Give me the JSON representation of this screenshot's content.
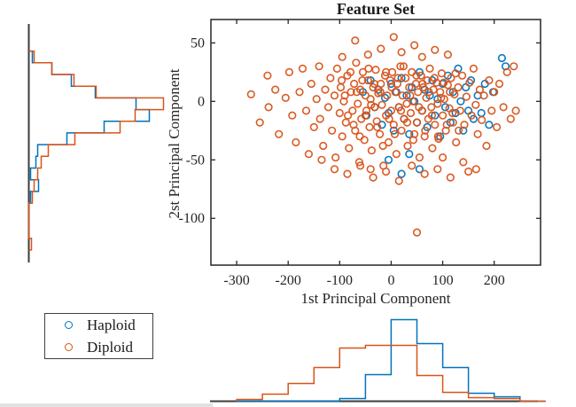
{
  "figure": {
    "title": "Feature Set",
    "background": "#ffffff"
  },
  "colors": {
    "haploid": "#0072BD",
    "diploid": "#D95319",
    "axis": "#262626",
    "hist_axis": "#3c3c3c",
    "text": "#262626"
  },
  "legend": {
    "items": [
      {
        "label": "Haploid",
        "color": "#0072BD"
      },
      {
        "label": "Diploid",
        "color": "#D95319"
      }
    ]
  },
  "chart_data": {
    "type": "scatter",
    "title": "Feature Set",
    "xlabel": "1st Principal Component",
    "ylabel": "2st Principal Component",
    "xlim": [
      -350,
      290
    ],
    "ylim": [
      -140,
      70
    ],
    "x_ticks": [
      -300,
      -200,
      -100,
      0,
      100,
      200
    ],
    "y_ticks": [
      50,
      0,
      -50,
      -100
    ],
    "grid": false,
    "legend_position": "bottom-left-outside",
    "series": [
      {
        "name": "Haploid",
        "color": "#0072BD",
        "marker": "open-circle",
        "points": [
          [
            -55,
            8
          ],
          [
            -48,
            -12
          ],
          [
            -40,
            18
          ],
          [
            -32,
            -5
          ],
          [
            -25,
            10
          ],
          [
            -18,
            -20
          ],
          [
            -12,
            3
          ],
          [
            -5,
            -10
          ],
          [
            0,
            15
          ],
          [
            5,
            -25
          ],
          [
            10,
            8
          ],
          [
            15,
            -5
          ],
          [
            20,
            20
          ],
          [
            25,
            -15
          ],
          [
            30,
            5
          ],
          [
            35,
            -28
          ],
          [
            40,
            12
          ],
          [
            45,
            0
          ],
          [
            50,
            -18
          ],
          [
            55,
            25
          ],
          [
            60,
            -8
          ],
          [
            65,
            10
          ],
          [
            70,
            -22
          ],
          [
            75,
            5
          ],
          [
            80,
            18
          ],
          [
            85,
            -12
          ],
          [
            90,
            2
          ],
          [
            95,
            -30
          ],
          [
            100,
            15
          ],
          [
            105,
            -5
          ],
          [
            110,
            22
          ],
          [
            115,
            -18
          ],
          [
            120,
            8
          ],
          [
            125,
            -10
          ],
          [
            130,
            28
          ],
          [
            135,
            0
          ],
          [
            140,
            -25
          ],
          [
            145,
            12
          ],
          [
            150,
            -8
          ],
          [
            155,
            18
          ],
          [
            160,
            -15
          ],
          [
            168,
            5
          ],
          [
            175,
            -10
          ],
          [
            182,
            15
          ],
          [
            190,
            -20
          ],
          [
            198,
            8
          ],
          [
            215,
            37
          ],
          [
            222,
            30
          ],
          [
            20,
            -62
          ],
          [
            55,
            -58
          ],
          [
            -5,
            -50
          ],
          [
            35,
            -45
          ]
        ]
      },
      {
        "name": "Diploid",
        "color": "#D95319",
        "marker": "open-circle",
        "points": [
          [
            -272,
            6
          ],
          [
            -255,
            -18
          ],
          [
            -240,
            22
          ],
          [
            -238,
            -5
          ],
          [
            -225,
            10
          ],
          [
            -218,
            -28
          ],
          [
            -205,
            3
          ],
          [
            -198,
            25
          ],
          [
            -192,
            -12
          ],
          [
            -185,
            -35
          ],
          [
            -178,
            8
          ],
          [
            -172,
            28
          ],
          [
            -165,
            -8
          ],
          [
            -160,
            -45
          ],
          [
            -155,
            15
          ],
          [
            -150,
            -22
          ],
          [
            -145,
            2
          ],
          [
            -140,
            30
          ],
          [
            -138,
            -15
          ],
          [
            -132,
            -38
          ],
          [
            -128,
            10
          ],
          [
            -122,
            -5
          ],
          [
            -118,
            20
          ],
          [
            -115,
            -25
          ],
          [
            -110,
            5
          ],
          [
            -108,
            -48
          ],
          [
            -105,
            28
          ],
          [
            -100,
            -10
          ],
          [
            -98,
            12
          ],
          [
            -95,
            -30
          ],
          [
            -92,
            0
          ],
          [
            -88,
            -18
          ],
          [
            -85,
            22
          ],
          [
            -82,
            -40
          ],
          [
            -78,
            8
          ],
          [
            -75,
            -8
          ],
          [
            -72,
            15
          ],
          [
            -70,
            -25
          ],
          [
            -68,
            33
          ],
          [
            -65,
            -2
          ],
          [
            -62,
            -52
          ],
          [
            -60,
            10
          ],
          [
            -58,
            -15
          ],
          [
            -55,
            25
          ],
          [
            -52,
            -33
          ],
          [
            -50,
            5
          ],
          [
            -48,
            -8
          ],
          [
            -45,
            18
          ],
          [
            -42,
            -22
          ],
          [
            -40,
            2
          ],
          [
            -38,
            -42
          ],
          [
            -35,
            12
          ],
          [
            -32,
            -5
          ],
          [
            -30,
            27
          ],
          [
            -28,
            -17
          ],
          [
            -25,
            7
          ],
          [
            -22,
            -28
          ],
          [
            -20,
            15
          ],
          [
            -18,
            -3
          ],
          [
            -15,
            -55
          ],
          [
            -12,
            22
          ],
          [
            -10,
            -12
          ],
          [
            -8,
            5
          ],
          [
            -5,
            -35
          ],
          [
            -2,
            18
          ],
          [
            -96,
            18
          ],
          [
            -90,
            5
          ],
          [
            -84,
            -12
          ],
          [
            -79,
            25
          ],
          [
            -73,
            -20
          ],
          [
            -67,
            8
          ],
          [
            -61,
            -30
          ],
          [
            -56,
            18
          ],
          [
            -50,
            -12
          ],
          [
            -44,
            28
          ],
          [
            -39,
            -3
          ],
          [
            -33,
            15
          ],
          [
            -27,
            -22
          ],
          [
            -21,
            8
          ],
          [
            -16,
            -38
          ],
          [
            -10,
            25
          ],
          [
            -4,
            -15
          ],
          [
            1,
            12
          ],
          [
            7,
            -28
          ],
          [
            13,
            20
          ],
          [
            19,
            -8
          ],
          [
            24,
            30
          ],
          [
            31,
            -18
          ],
          [
            37,
            5
          ],
          [
            43,
            -33
          ],
          [
            49,
            22
          ],
          [
            54,
            -5
          ],
          [
            61,
            15
          ],
          [
            66,
            -25
          ],
          [
            73,
            8
          ],
          [
            79,
            -12
          ],
          [
            84,
            20
          ],
          [
            91,
            -30
          ],
          [
            97,
            3
          ],
          [
            102,
            16
          ],
          [
            108,
            -20
          ],
          [
            114,
            8
          ],
          [
            119,
            -10
          ],
          [
            125,
            24
          ],
          [
            131,
            -25
          ],
          [
            0,
            -8
          ],
          [
            2,
            25
          ],
          [
            5,
            -20
          ],
          [
            8,
            8
          ],
          [
            10,
            -45
          ],
          [
            12,
            15
          ],
          [
            15,
            -5
          ],
          [
            18,
            30
          ],
          [
            20,
            -25
          ],
          [
            22,
            5
          ],
          [
            25,
            -15
          ],
          [
            28,
            20
          ],
          [
            30,
            -2
          ],
          [
            32,
            -38
          ],
          [
            35,
            12
          ],
          [
            38,
            -10
          ],
          [
            40,
            25
          ],
          [
            42,
            0
          ],
          [
            45,
            -28
          ],
          [
            48,
            15
          ],
          [
            50,
            -18
          ],
          [
            52,
            8
          ],
          [
            55,
            -48
          ],
          [
            58,
            22
          ],
          [
            60,
            -8
          ],
          [
            62,
            12
          ],
          [
            65,
            -30
          ],
          [
            68,
            3
          ],
          [
            70,
            18
          ],
          [
            72,
            -15
          ],
          [
            75,
            28
          ],
          [
            78,
            -5
          ],
          [
            80,
            -40
          ],
          [
            82,
            10
          ],
          [
            85,
            -20
          ],
          [
            88,
            16
          ],
          [
            90,
            -2
          ],
          [
            92,
            -32
          ],
          [
            95,
            8
          ],
          [
            98,
            24
          ],
          [
            100,
            -12
          ],
          [
            103,
            2
          ],
          [
            106,
            -25
          ],
          [
            110,
            14
          ],
          [
            113,
            -6
          ],
          [
            116,
            20
          ],
          [
            120,
            -18
          ],
          [
            123,
            6
          ],
          [
            126,
            -35
          ],
          [
            130,
            12
          ],
          [
            134,
            -8
          ],
          [
            138,
            22
          ],
          [
            142,
            -20
          ],
          [
            146,
            4
          ],
          [
            150,
            -60
          ],
          [
            152,
            16
          ],
          [
            156,
            -12
          ],
          [
            160,
            28
          ],
          [
            164,
            -3
          ],
          [
            168,
            -28
          ],
          [
            172,
            10
          ],
          [
            176,
            -16
          ],
          [
            180,
            5
          ],
          [
            185,
            -38
          ],
          [
            190,
            18
          ],
          [
            195,
            -8
          ],
          [
            200,
            8
          ],
          [
            205,
            -22
          ],
          [
            210,
            15
          ],
          [
            218,
            -5
          ],
          [
            225,
            25
          ],
          [
            232,
            -15
          ],
          [
            238,
            30
          ],
          [
            242,
            -8
          ],
          [
            -70,
            52
          ],
          [
            -45,
            40
          ],
          [
            -20,
            45
          ],
          [
            5,
            55
          ],
          [
            20,
            42
          ],
          [
            45,
            48
          ],
          [
            60,
            38
          ],
          [
            85,
            44
          ],
          [
            -95,
            38
          ],
          [
            110,
            40
          ],
          [
            -110,
            -58
          ],
          [
            -85,
            -62
          ],
          [
            -60,
            -55
          ],
          [
            -35,
            -65
          ],
          [
            -10,
            -60
          ],
          [
            15,
            -68
          ],
          [
            40,
            -55
          ],
          [
            65,
            -62
          ],
          [
            90,
            -58
          ],
          [
            115,
            -65
          ],
          [
            140,
            -52
          ],
          [
            -135,
            -50
          ],
          [
            165,
            -58
          ],
          [
            100,
            -48
          ],
          [
            -40,
            -58
          ],
          [
            50,
            -112
          ]
        ]
      }
    ],
    "marginal_left": {
      "type": "stairs-histogram",
      "axis": "2st Principal Component",
      "bin_width": 10,
      "series": [
        {
          "name": "Haploid",
          "color": "#0072BD",
          "bin_start": -87,
          "counts": [
            2,
            11,
            2,
            8,
            10,
            43,
            85,
            136,
            121,
            75,
            48,
            26,
            4
          ]
        },
        {
          "name": "Diploid",
          "color": "#D95319",
          "bin_start": -127,
          "counts": [
            3,
            0,
            0,
            0,
            4,
            6,
            10,
            14,
            22,
            52,
            103,
            120,
            152,
            76,
            51,
            26,
            6
          ]
        }
      ]
    },
    "marginal_bottom": {
      "type": "stairs-histogram",
      "axis": "1st Principal Component",
      "bin_width": 50,
      "series": [
        {
          "name": "Haploid",
          "color": "#0072BD",
          "bin_start": -300,
          "counts": [
            0,
            0,
            0,
            0,
            3,
            30,
            92,
            65,
            38,
            9,
            5,
            0
          ]
        },
        {
          "name": "Diploid",
          "color": "#D95319",
          "bin_start": -300,
          "counts": [
            2,
            8,
            20,
            38,
            60,
            63,
            63,
            29,
            10,
            4,
            3,
            0
          ]
        }
      ]
    }
  }
}
